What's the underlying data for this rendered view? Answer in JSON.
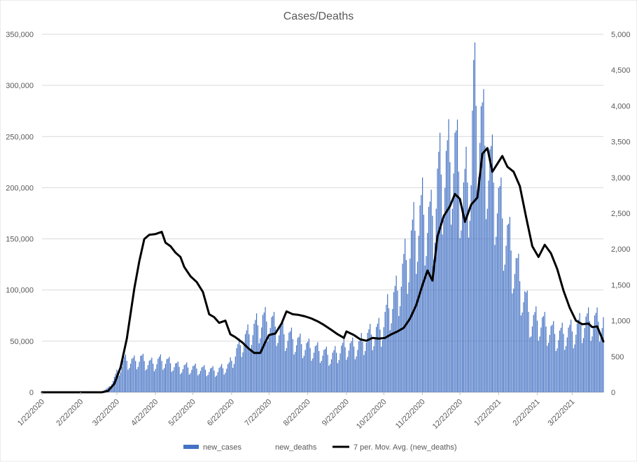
{
  "chart_data": {
    "type": "bar",
    "title": "Cases/Deaths",
    "x_start": "1/22/2020",
    "x_end": "4/16/2021",
    "x_ticks": [
      "1/22/2020",
      "2/22/2020",
      "3/22/2020",
      "4/22/2020",
      "5/22/2020",
      "6/22/2020",
      "7/22/2020",
      "8/22/2020",
      "9/22/2020",
      "10/22/2020",
      "11/22/2020",
      "12/22/2020",
      "1/22/2021",
      "2/22/2021",
      "3/22/2021"
    ],
    "y_left": {
      "min": 0,
      "max": 350000,
      "ticks": [
        0,
        50000,
        100000,
        150000,
        200000,
        250000,
        300000,
        350000
      ],
      "tick_labels": [
        "0",
        "50,000",
        "100,000",
        "150,000",
        "200,000",
        "250,000",
        "300,000",
        "350,000"
      ]
    },
    "y_right": {
      "min": 0,
      "max": 5000,
      "ticks": [
        0,
        500,
        1000,
        1500,
        2000,
        2500,
        3000,
        3500,
        4000,
        4500,
        5000
      ],
      "tick_labels": [
        "0",
        "500",
        "1,000",
        "1,500",
        "2,000",
        "2,500",
        "3,000",
        "3,500",
        "4,000",
        "4,500",
        "5,000"
      ]
    },
    "grid": true,
    "legend_position": "bottom",
    "series": [
      {
        "name": "new_cases",
        "type": "bar",
        "axis": "left",
        "color": "#4472c4",
        "points": [
          [
            "1/22/2020",
            0
          ],
          [
            "3/1/2020",
            100
          ],
          [
            "3/10/2020",
            1000
          ],
          [
            "3/15/2020",
            4000
          ],
          [
            "3/20/2020",
            14000
          ],
          [
            "3/25/2020",
            25000
          ],
          [
            "3/28/2020",
            31000
          ],
          [
            "4/5/2020",
            30000
          ],
          [
            "4/10/2020",
            33000
          ],
          [
            "4/15/2020",
            29000
          ],
          [
            "4/20/2020",
            28000
          ],
          [
            "4/25/2020",
            31000
          ],
          [
            "5/1/2020",
            30000
          ],
          [
            "5/10/2020",
            25000
          ],
          [
            "5/20/2020",
            24000
          ],
          [
            "6/1/2020",
            22000
          ],
          [
            "6/10/2020",
            21000
          ],
          [
            "6/20/2020",
            26000
          ],
          [
            "6/25/2020",
            38000
          ],
          [
            "7/1/2020",
            50000
          ],
          [
            "7/10/2020",
            62000
          ],
          [
            "7/17/2020",
            70000
          ],
          [
            "7/24/2020",
            68000
          ],
          [
            "8/1/2020",
            58000
          ],
          [
            "8/10/2020",
            52000
          ],
          [
            "8/20/2020",
            45000
          ],
          [
            "9/1/2020",
            40000
          ],
          [
            "9/10/2020",
            35000
          ],
          [
            "9/20/2020",
            44000
          ],
          [
            "10/1/2020",
            45000
          ],
          [
            "10/10/2020",
            55000
          ],
          [
            "10/20/2020",
            62000
          ],
          [
            "10/25/2020",
            80000
          ],
          [
            "11/1/2020",
            95000
          ],
          [
            "11/8/2020",
            125000
          ],
          [
            "11/15/2020",
            155000
          ],
          [
            "11/22/2020",
            175000
          ],
          [
            "11/29/2020",
            165000
          ],
          [
            "12/5/2020",
            210000
          ],
          [
            "12/12/2020",
            220000
          ],
          [
            "12/18/2020",
            235000
          ],
          [
            "12/25/2020",
            190000
          ],
          [
            "12/31/2020",
            220000
          ],
          [
            "1/2/2021",
            290000
          ],
          [
            "1/7/2021",
            265000
          ],
          [
            "1/12/2021",
            235000
          ],
          [
            "1/20/2021",
            195000
          ],
          [
            "1/27/2021",
            160000
          ],
          [
            "2/3/2021",
            130000
          ],
          [
            "2/10/2021",
            100000
          ],
          [
            "2/17/2021",
            70000
          ],
          [
            "2/24/2021",
            70000
          ],
          [
            "3/3/2021",
            62000
          ],
          [
            "3/10/2021",
            55000
          ],
          [
            "3/17/2021",
            58000
          ],
          [
            "3/24/2021",
            60000
          ],
          [
            "3/31/2021",
            68000
          ],
          [
            "4/7/2021",
            70000
          ],
          [
            "4/16/2021",
            68000
          ]
        ]
      },
      {
        "name": "new_deaths",
        "type": "bar",
        "axis": "right",
        "color": "#4472c4",
        "points": []
      },
      {
        "name": "7 per. Mov. Avg. (new_deaths)",
        "type": "line",
        "axis": "right",
        "color": "#000000",
        "points": [
          [
            "1/22/2020",
            0
          ],
          [
            "3/10/2020",
            0
          ],
          [
            "3/15/2020",
            20
          ],
          [
            "3/20/2020",
            120
          ],
          [
            "3/25/2020",
            350
          ],
          [
            "3/30/2020",
            750
          ],
          [
            "4/5/2020",
            1450
          ],
          [
            "4/9/2020",
            1830
          ],
          [
            "4/13/2020",
            2140
          ],
          [
            "4/17/2020",
            2200
          ],
          [
            "4/22/2020",
            2210
          ],
          [
            "4/27/2020",
            2240
          ],
          [
            "4/30/2020",
            2090
          ],
          [
            "5/4/2020",
            2040
          ],
          [
            "5/8/2020",
            1950
          ],
          [
            "5/12/2020",
            1890
          ],
          [
            "5/15/2020",
            1750
          ],
          [
            "5/20/2020",
            1620
          ],
          [
            "5/25/2020",
            1540
          ],
          [
            "5/30/2020",
            1400
          ],
          [
            "6/4/2020",
            1090
          ],
          [
            "6/8/2020",
            1050
          ],
          [
            "6/12/2020",
            970
          ],
          [
            "6/17/2020",
            1000
          ],
          [
            "6/21/2020",
            810
          ],
          [
            "6/25/2020",
            770
          ],
          [
            "7/1/2020",
            690
          ],
          [
            "7/5/2020",
            620
          ],
          [
            "7/10/2020",
            550
          ],
          [
            "7/15/2020",
            550
          ],
          [
            "7/19/2020",
            700
          ],
          [
            "7/22/2020",
            800
          ],
          [
            "7/27/2020",
            820
          ],
          [
            "8/1/2020",
            960
          ],
          [
            "8/5/2020",
            1130
          ],
          [
            "8/10/2020",
            1090
          ],
          [
            "8/15/2020",
            1080
          ],
          [
            "8/20/2020",
            1060
          ],
          [
            "8/25/2020",
            1030
          ],
          [
            "8/30/2020",
            990
          ],
          [
            "9/4/2020",
            940
          ],
          [
            "9/10/2020",
            870
          ],
          [
            "9/15/2020",
            810
          ],
          [
            "9/20/2020",
            760
          ],
          [
            "9/22/2020",
            850
          ],
          [
            "9/28/2020",
            800
          ],
          [
            "10/3/2020",
            740
          ],
          [
            "10/8/2020",
            720
          ],
          [
            "10/13/2020",
            760
          ],
          [
            "10/18/2020",
            750
          ],
          [
            "10/23/2020",
            760
          ],
          [
            "10/28/2020",
            810
          ],
          [
            "11/2/2020",
            850
          ],
          [
            "11/7/2020",
            900
          ],
          [
            "11/12/2020",
            1030
          ],
          [
            "11/17/2020",
            1220
          ],
          [
            "11/22/2020",
            1500
          ],
          [
            "11/26/2020",
            1700
          ],
          [
            "11/30/2020",
            1560
          ],
          [
            "12/4/2020",
            2180
          ],
          [
            "12/9/2020",
            2460
          ],
          [
            "12/14/2020",
            2600
          ],
          [
            "12/18/2020",
            2770
          ],
          [
            "12/22/2020",
            2700
          ],
          [
            "12/26/2020",
            2380
          ],
          [
            "12/31/2020",
            2620
          ],
          [
            "1/5/2021",
            2720
          ],
          [
            "1/9/2021",
            3330
          ],
          [
            "1/13/2021",
            3410
          ],
          [
            "1/17/2021",
            3080
          ],
          [
            "1/21/2021",
            3190
          ],
          [
            "1/25/2021",
            3300
          ],
          [
            "1/29/2021",
            3150
          ],
          [
            "2/3/2021",
            3080
          ],
          [
            "2/8/2021",
            2880
          ],
          [
            "2/13/2021",
            2450
          ],
          [
            "2/18/2021",
            2040
          ],
          [
            "2/23/2021",
            1890
          ],
          [
            "2/28/2021",
            2060
          ],
          [
            "3/5/2021",
            1940
          ],
          [
            "3/10/2021",
            1720
          ],
          [
            "3/15/2021",
            1420
          ],
          [
            "3/20/2021",
            1180
          ],
          [
            "3/25/2021",
            1000
          ],
          [
            "3/30/2021",
            950
          ],
          [
            "4/4/2021",
            960
          ],
          [
            "4/7/2021",
            910
          ],
          [
            "4/11/2021",
            920
          ],
          [
            "4/16/2021",
            710
          ]
        ]
      }
    ]
  }
}
